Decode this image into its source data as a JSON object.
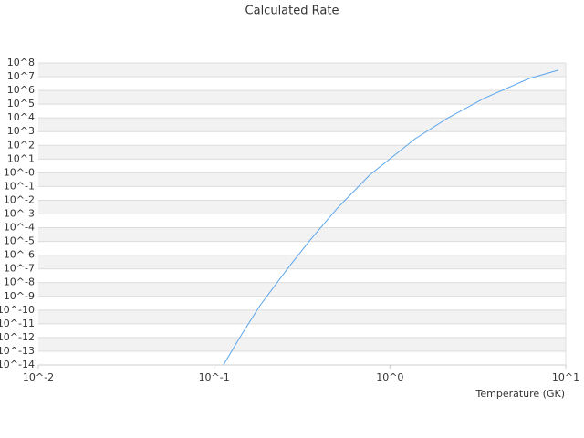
{
  "chart_data": {
    "type": "line",
    "title": "Calculated Rate",
    "x_label": "Temperature (GK)",
    "x_log": true,
    "y_log": true,
    "grid": true,
    "xlim": [
      0.01,
      10
    ],
    "xticks": [
      {
        "value": 0.01,
        "label": "10^-2"
      },
      {
        "value": 0.1,
        "label": "10^-1"
      },
      {
        "value": 1,
        "label": "10^0"
      },
      {
        "value": 10,
        "label": "10^1"
      }
    ],
    "ylim": [
      1e-14,
      100000000.0
    ],
    "yticks": [
      {
        "value": 1e-14,
        "label": "10^-14"
      },
      {
        "value": 1e-13,
        "label": "10^-13"
      },
      {
        "value": 1e-12,
        "label": "10^-12"
      },
      {
        "value": 1e-11,
        "label": "10^-11"
      },
      {
        "value": 1e-10,
        "label": "10^-10"
      },
      {
        "value": 1e-09,
        "label": "10^-9"
      },
      {
        "value": 1e-08,
        "label": "10^-8"
      },
      {
        "value": 1e-07,
        "label": "10^-7"
      },
      {
        "value": 1e-06,
        "label": "10^-6"
      },
      {
        "value": 1e-05,
        "label": "10^-5"
      },
      {
        "value": 0.0001,
        "label": "10^-4"
      },
      {
        "value": 0.001,
        "label": "10^-3"
      },
      {
        "value": 0.01,
        "label": "10^-2"
      },
      {
        "value": 0.1,
        "label": "10^-1"
      },
      {
        "value": 1,
        "label": "10^-0"
      },
      {
        "value": 10,
        "label": "10^1"
      },
      {
        "value": 100,
        "label": "10^2"
      },
      {
        "value": 1000,
        "label": "10^3"
      },
      {
        "value": 10000,
        "label": "10^4"
      },
      {
        "value": 100000,
        "label": "10^5"
      },
      {
        "value": 1000000,
        "label": "10^6"
      },
      {
        "value": 10000000,
        "label": "10^7"
      },
      {
        "value": 100000000,
        "label": "10^8"
      }
    ],
    "series": [
      {
        "color": "#5aa5ee",
        "x": [
          0.113,
          0.14,
          0.182,
          0.261,
          0.352,
          0.504,
          0.766,
          1.03,
          1.39,
          2.11,
          3.41,
          6.19,
          9.08
        ],
        "values": [
          1e-14,
          1e-12,
          2.1e-10,
          1e-07,
          1.3e-05,
          0.0028,
          0.68,
          14,
          300,
          8900,
          260000,
          7400000,
          30000000
        ]
      }
    ]
  }
}
